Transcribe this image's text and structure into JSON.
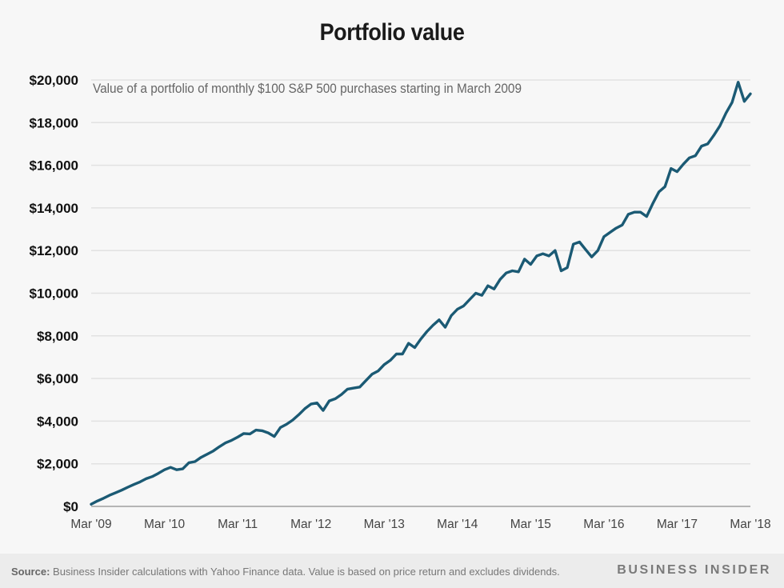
{
  "header": {
    "title": "Portfolio value",
    "subtitle": "Value of a portfolio of monthly $100 S&P 500 purchases starting in March 2009"
  },
  "footer": {
    "source_label": "Source:",
    "source_text": " Business Insider calculations with Yahoo Finance data. Value is based on price return and excludes dividends.",
    "brand": "BUSINESS INSIDER"
  },
  "colors": {
    "line": "#1b5a74",
    "grid": "#e2e2e2",
    "axis": "#b5b5b5",
    "background": "#f7f7f7",
    "footer_bg": "#ececec"
  },
  "chart_data": {
    "type": "line",
    "title": "Portfolio value",
    "subtitle": "Value of a portfolio of monthly $100 S&P 500 purchases starting in March 2009",
    "xlabel": "",
    "ylabel": "",
    "x_unit": "months since Mar 2009",
    "xlim": [
      0,
      108
    ],
    "ylim": [
      0,
      20000
    ],
    "grid": true,
    "legend": "none",
    "y_ticks": [
      {
        "value": 0,
        "label": "$0"
      },
      {
        "value": 2000,
        "label": "$2,000"
      },
      {
        "value": 4000,
        "label": "$4,000"
      },
      {
        "value": 6000,
        "label": "$6,000"
      },
      {
        "value": 8000,
        "label": "$8,000"
      },
      {
        "value": 10000,
        "label": "$10,000"
      },
      {
        "value": 12000,
        "label": "$12,000"
      },
      {
        "value": 14000,
        "label": "$14,000"
      },
      {
        "value": 16000,
        "label": "$16,000"
      },
      {
        "value": 18000,
        "label": "$18,000"
      },
      {
        "value": 20000,
        "label": "$20,000"
      }
    ],
    "x_ticks": [
      {
        "value": 0,
        "label": "Mar '09"
      },
      {
        "value": 12,
        "label": "Mar '10"
      },
      {
        "value": 24,
        "label": "Mar '11"
      },
      {
        "value": 36,
        "label": "Mar '12"
      },
      {
        "value": 48,
        "label": "Mar '13"
      },
      {
        "value": 60,
        "label": "Mar '14"
      },
      {
        "value": 72,
        "label": "Mar '15"
      },
      {
        "value": 84,
        "label": "Mar '16"
      },
      {
        "value": 96,
        "label": "Mar '17"
      },
      {
        "value": 108,
        "label": "Mar '18"
      }
    ],
    "series": [
      {
        "name": "Portfolio value",
        "values": [
          100,
          250,
          380,
          520,
          640,
          760,
          900,
          1030,
          1150,
          1300,
          1400,
          1550,
          1720,
          1830,
          1720,
          1760,
          2050,
          2100,
          2300,
          2450,
          2600,
          2800,
          2980,
          3100,
          3250,
          3420,
          3400,
          3580,
          3550,
          3450,
          3280,
          3700,
          3850,
          4050,
          4300,
          4580,
          4800,
          4850,
          4500,
          4950,
          5050,
          5250,
          5500,
          5550,
          5600,
          5900,
          6200,
          6350,
          6650,
          6850,
          7150,
          7150,
          7650,
          7450,
          7850,
          8200,
          8500,
          8750,
          8400,
          8950,
          9250,
          9400,
          9700,
          10000,
          9900,
          10350,
          10200,
          10650,
          10950,
          11050,
          11000,
          11600,
          11350,
          11750,
          11850,
          11750,
          12000,
          11050,
          11200,
          12300,
          12400,
          12050,
          11700,
          12000,
          12650,
          12850,
          13050,
          13200,
          13700,
          13800,
          13800,
          13600,
          14200,
          14750,
          15000,
          15850,
          15700,
          16050,
          16350,
          16450,
          16900,
          17000,
          17400,
          17850,
          18450,
          18950,
          19900,
          19000,
          19350
        ]
      }
    ]
  }
}
